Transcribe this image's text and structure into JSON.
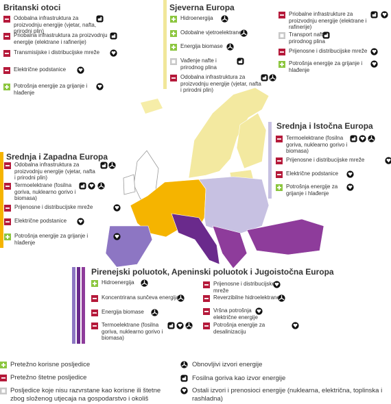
{
  "regions": [
    {
      "title": "Britanski otoci",
      "items": [
        "Odobalna infrastruktura za proizvodnju energije (vjetar, nafta, prirodni plin)",
        "Priobalna infrastruktura za proizvodnju energije (elektrane i rafinerije)",
        "Transmisijske i distribucijske mreže",
        "Električne podstanice",
        "Potrošnja energije za grijanje i hlađenje"
      ]
    },
    {
      "title": "Sjeverna Europa",
      "items": [
        "Hidroenergija",
        "Odobalne vjetroelektrane",
        "Energija biomase",
        "Vađenje nafte i prirodnog plina",
        "Odobalna infrastruktura za proizvodnju energije (vjetar, nafta i prirodni plin)",
        "Priobalne infrastrukture za proizvodnju energije (elektrane i rafinerije)",
        "Transport nafte i prirodnog plina",
        "Prijenosne i distribucijske mreže",
        "Potrošnja energije za grijanje i hlađenje"
      ]
    },
    {
      "title": "Srednja i Istočna Europa",
      "items": [
        "Termoelektrane (fosilna goriva, nuklearno gorivo i biomasa)",
        "Prijenosne i distribucijske mreže",
        "Električne podstanice",
        "Potrošnja energije za grijanje i hlađenje"
      ]
    },
    {
      "title": "Srednja i Zapadna Europa",
      "items": [
        "Odobalna infrastruktura za proizvodnju energije (vjetar, nafta i prirodni plin)",
        "Termoelektrane (fosilna goriva, nuklearno gorivo i biomasa)",
        "Prijenosne i distribucijske mreže",
        "Električne podstanice",
        "Potrošnja energije za grijanje i hlađenje"
      ]
    },
    {
      "title": "Pirenejski poluotok, Apeninski poluotok i Jugoistočna Europa",
      "items": [
        "Hidroenergija",
        "Koncentrirana sunčeva energija",
        "Energija biomase",
        "Termoelektrane (fosilna goriva, nuklearno gorivo i biomasa)",
        "Prijenosne i distribucijske mreže",
        "Reverzibilne hidroelektrane",
        "Vršna potrošnja električne energije",
        "Potrošnja energije za desalinizaciju"
      ]
    }
  ],
  "legend": {
    "impacts": [
      "Pretežno korisne posljedice",
      "Pretežno štetne posljedice",
      "Posljedice koje nisu razvrstane kao korisne ili štetne zbog složenog utjecaja na gospodarstvo i okoliš"
    ],
    "sources": [
      "Obnovljivi izvori energije",
      "Fosilna goriva kao izvor energije",
      "Ostali izvori i prenosioci energije (nuklearna, električna, toplinska i rashladna)"
    ]
  }
}
